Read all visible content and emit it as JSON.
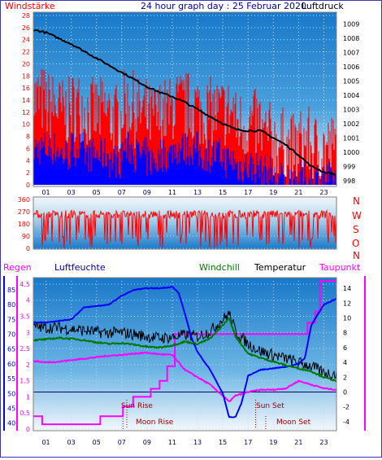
{
  "header": {
    "left_label": "Windstärke",
    "title": "24 hour graph day : 25 Februar 2020",
    "right_label": "Luftdruck"
  },
  "colors": {
    "red": "#ff0000",
    "blue": "#0000ff",
    "green": "#007800",
    "black": "#000000",
    "magenta": "#ff00ff",
    "navy": "#0000a0",
    "bg_dark": "#1a78c8",
    "bg_light": "#f4f8fc"
  },
  "chart_data": [
    {
      "type": "line",
      "x_ticks": [
        "01",
        "03",
        "05",
        "07",
        "09",
        "11",
        "13",
        "15",
        "17",
        "19",
        "21",
        "23"
      ],
      "left_axis": {
        "label": "Windstärke",
        "ticks": [
          0,
          2,
          4,
          6,
          8,
          10,
          12,
          14,
          16,
          18,
          20,
          22,
          24,
          26,
          28
        ],
        "range": [
          0,
          28
        ]
      },
      "right_axis": {
        "label": "Luftdruck",
        "ticks": [
          998,
          999,
          1000,
          1001,
          1002,
          1003,
          1004,
          1005,
          1006,
          1007,
          1008,
          1009
        ],
        "range": [
          997.7,
          1009.6
        ]
      },
      "series": [
        {
          "color": "red",
          "axis": "left",
          "style": "bars",
          "approx_avg": [
            14,
            13,
            12,
            13,
            12,
            12,
            11,
            13,
            12,
            11,
            12,
            13,
            13,
            12,
            12,
            12,
            10,
            10,
            8,
            7,
            6,
            7,
            6,
            6
          ]
        },
        {
          "color": "blue",
          "axis": "left",
          "style": "bars",
          "approx_avg": [
            6,
            6,
            5,
            6,
            5,
            5,
            4,
            6,
            5,
            4,
            5,
            6,
            6,
            5,
            5,
            4,
            3,
            3,
            2,
            1,
            1,
            1,
            1,
            1
          ]
        },
        {
          "color": "black",
          "axis": "right",
          "style": "line",
          "x": [
            0,
            1,
            2,
            3,
            4,
            5,
            6,
            7,
            8,
            9,
            10,
            11,
            12,
            13,
            14,
            15,
            16,
            17,
            18,
            19,
            20,
            21,
            22,
            23,
            24
          ],
          "y": [
            1008.6,
            1008.4,
            1008.0,
            1007.6,
            1007.1,
            1006.6,
            1006.1,
            1005.6,
            1005.1,
            1004.6,
            1004.2,
            1003.9,
            1003.5,
            1003.0,
            1002.5,
            1002.0,
            1001.6,
            1001.5,
            1001.5,
            1001.0,
            1000.5,
            999.8,
            999.0,
            998.6,
            998.4
          ]
        }
      ]
    },
    {
      "type": "line",
      "x_ticks": [
        "01",
        "03",
        "05",
        "07",
        "09",
        "11",
        "13",
        "15",
        "17",
        "19",
        "21",
        "23"
      ],
      "left_axis": {
        "ticks": [
          0,
          90,
          180,
          270,
          360
        ],
        "range": [
          0,
          360
        ]
      },
      "right_labels": [
        "N",
        "W",
        "S",
        "O",
        "N"
      ],
      "series": [
        {
          "color": "red",
          "style": "spikes",
          "description_values_deg": [
            0,
            360
          ]
        }
      ]
    },
    {
      "type": "line",
      "labels": {
        "regen": "Regen",
        "luftfeuchte": "Luftfeuchte",
        "windchill": "Windchill",
        "temperatur": "Temperatur",
        "taupunkt": "Taupunkt"
      },
      "x_ticks": [
        "01",
        "03",
        "05",
        "07",
        "09",
        "11",
        "13",
        "15",
        "17",
        "19",
        "21",
        "23"
      ],
      "humidity_axis": {
        "ticks": [
          40,
          45,
          50,
          55,
          60,
          65,
          70,
          75,
          80,
          85
        ],
        "range": [
          38,
          88
        ]
      },
      "rain_axis": {
        "ticks": [
          0,
          0.5,
          1,
          1.5,
          2,
          2.5,
          3,
          3.5,
          4,
          4.5
        ],
        "range": [
          0,
          4.6
        ]
      },
      "temp_axis": {
        "ticks": [
          -4,
          -2,
          0,
          2,
          4,
          6,
          8,
          10,
          12,
          14
        ],
        "range": [
          -5,
          15
        ]
      },
      "annotations": [
        {
          "text": "Sun Rise",
          "hour": 7.4
        },
        {
          "text": "Moon Rise",
          "hour": 7.1
        },
        {
          "text": "Sun Set",
          "hour": 17.6
        },
        {
          "text": "Moon Set",
          "hour": 18.4
        }
      ],
      "series": [
        {
          "color": "blue",
          "axis": "humidity",
          "x": [
            0,
            1,
            2,
            3,
            3.5,
            4,
            5,
            6,
            7,
            8,
            9,
            10,
            11,
            11.5,
            12,
            12.5,
            13,
            14,
            15,
            15.5,
            16,
            16.5,
            17,
            18,
            19,
            20,
            21,
            21.5,
            22,
            23,
            24
          ],
          "y": [
            74,
            74,
            74.5,
            75,
            77,
            79,
            79.5,
            80,
            83,
            85,
            85.5,
            85.5,
            86,
            84,
            77,
            69,
            64,
            58,
            50,
            42,
            42,
            47,
            56,
            58,
            58.5,
            59,
            60,
            62,
            73,
            80,
            82
          ]
        },
        {
          "color": "black",
          "axis": "temp",
          "x": [
            0,
            1,
            2,
            3,
            4,
            5,
            6,
            7,
            8,
            9,
            10,
            11,
            12,
            13,
            14,
            15,
            15.5,
            16,
            17,
            18,
            19,
            20,
            21,
            22,
            23,
            24
          ],
          "y": [
            8.8,
            8.7,
            8.7,
            8.5,
            8.3,
            8.1,
            8.0,
            8.0,
            7.8,
            7.5,
            7.3,
            7.4,
            7.7,
            7.5,
            8.2,
            9.8,
            10.6,
            8.2,
            6.5,
            5.5,
            5.0,
            4.5,
            4.0,
            3.5,
            2.6,
            2.4
          ]
        },
        {
          "color": "green",
          "axis": "temp",
          "x": [
            0,
            1,
            2,
            3,
            4,
            5,
            6,
            7,
            8,
            9,
            10,
            11,
            12,
            13,
            14,
            15,
            15.5,
            16,
            17,
            18,
            19,
            20,
            21,
            22,
            23,
            24
          ],
          "y": [
            7.0,
            7.1,
            7.3,
            7.2,
            7.0,
            6.7,
            6.5,
            6.6,
            6.4,
            6.1,
            6.0,
            6.3,
            6.8,
            6.5,
            7.2,
            9.0,
            10.0,
            7.5,
            5.2,
            4.6,
            4.1,
            3.6,
            3.2,
            2.8,
            2.0,
            1.5
          ]
        },
        {
          "color": "magenta",
          "axis": "temp",
          "x": [
            0,
            1,
            2,
            3,
            4,
            5,
            6,
            7,
            8,
            9,
            10,
            11,
            12,
            13,
            14,
            15,
            15.5,
            16,
            17,
            18,
            19,
            20,
            21,
            22,
            23,
            24
          ],
          "y": [
            4.2,
            4.0,
            4.1,
            4.3,
            4.5,
            4.7,
            4.9,
            5.0,
            5.2,
            5.3,
            5.1,
            5.0,
            3.0,
            2.0,
            1.0,
            -0.5,
            -1.3,
            -0.5,
            0.0,
            0.3,
            0.3,
            0.5,
            1.5,
            1.0,
            0.5,
            0.3
          ]
        },
        {
          "color": "magenta",
          "axis": "rain",
          "style": "step",
          "x": [
            0,
            0.7,
            0.7,
            5.3,
            5.3,
            7.1,
            7.1,
            7.9,
            7.9,
            9.3,
            9.3,
            10.0,
            10.0,
            10.6,
            10.6,
            11.2,
            11.2,
            21.7,
            21.7,
            22.3,
            22.3,
            22.7,
            22.7,
            24
          ],
          "y": [
            0.4,
            0.4,
            0.15,
            0.15,
            0.4,
            0.4,
            0.7,
            0.7,
            1.0,
            1.0,
            1.25,
            1.25,
            1.5,
            1.5,
            1.95,
            1.95,
            2.95,
            2.95,
            3.3,
            3.3,
            3.65,
            3.65,
            4.6,
            4.6
          ]
        }
      ]
    }
  ]
}
